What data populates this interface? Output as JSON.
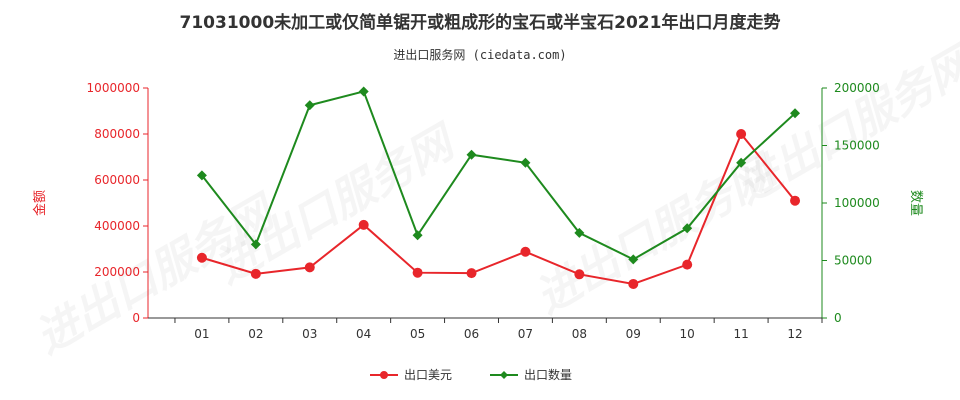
{
  "chart_data": {
    "type": "line",
    "title": "71031000未加工或仅简单锯开或粗成形的宝石或半宝石2021年出口月度走势",
    "subtitle": "进出口服务网 (ciedata.com)",
    "categories": [
      "01",
      "02",
      "03",
      "04",
      "05",
      "06",
      "07",
      "08",
      "09",
      "10",
      "11",
      "12"
    ],
    "left_axis": {
      "label": "金额",
      "ticks": [
        "0",
        "200000",
        "400000",
        "600000",
        "800000",
        "1000000"
      ],
      "range": [
        0,
        1000000
      ],
      "color": "#e8262b"
    },
    "right_axis": {
      "label": "数量",
      "ticks": [
        "0",
        "50000",
        "100000",
        "150000",
        "200000"
      ],
      "range": [
        0,
        200000
      ],
      "color": "#1e8a1e"
    },
    "series": [
      {
        "name": "出口美元",
        "axis": "left",
        "color": "#e8262b",
        "marker": "circle",
        "values": [
          262000,
          192000,
          220000,
          405000,
          197000,
          195000,
          288000,
          190000,
          148000,
          232000,
          800000,
          510000
        ]
      },
      {
        "name": "出口数量",
        "axis": "right",
        "color": "#1e8a1e",
        "marker": "diamond",
        "values": [
          124000,
          64000,
          185000,
          197000,
          72000,
          142000,
          135000,
          74000,
          51000,
          78000,
          135000,
          178000
        ]
      }
    ],
    "legend_position": "bottom-center",
    "grid": false
  },
  "watermark": "进出口服务网"
}
